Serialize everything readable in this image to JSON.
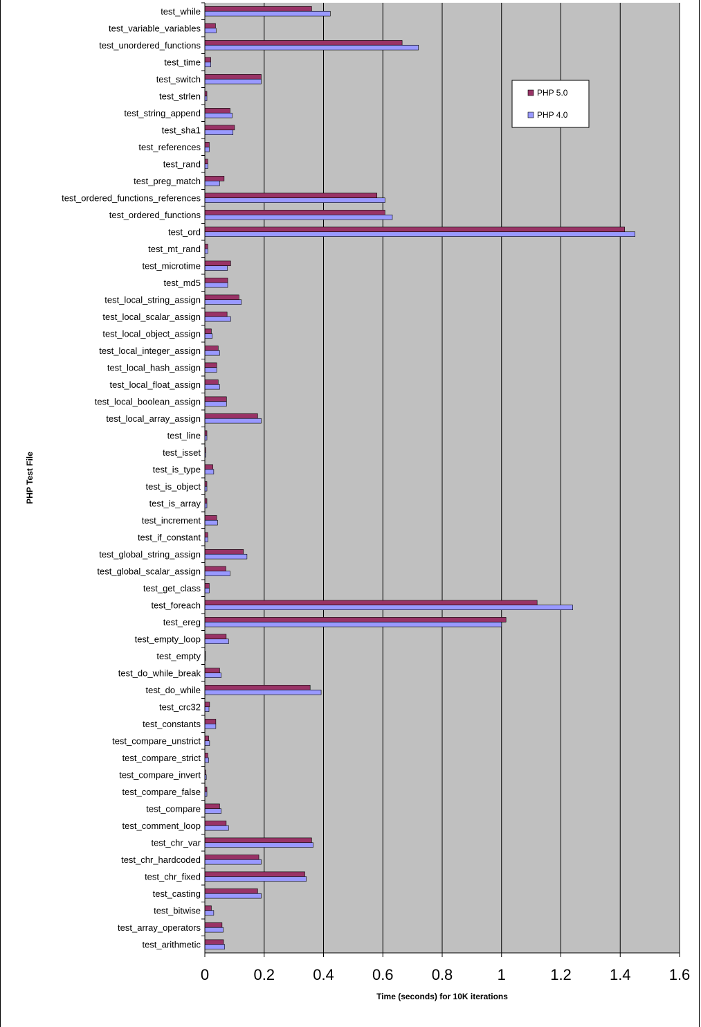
{
  "chart_data": {
    "type": "bar",
    "orientation": "horizontal",
    "xlabel": "Time (seconds) for 10K iterations",
    "ylabel": "PHP Test File",
    "xlim": [
      0,
      1.6
    ],
    "x_ticks": [
      "0",
      "0.2",
      "0.4",
      "0.6",
      "0.8",
      "1",
      "1.2",
      "1.4",
      "1.6"
    ],
    "grid": "vertical gridlines",
    "legend_position": "top-right",
    "colors": {
      "PHP 5.0": "#993366",
      "PHP 4.0": "#9999ff",
      "plot_background": "#c0c0c0"
    },
    "categories": [
      "test_while",
      "test_variable_variables",
      "test_unordered_functions",
      "test_time",
      "test_switch",
      "test_strlen",
      "test_string_append",
      "test_sha1",
      "test_references",
      "test_rand",
      "test_preg_match",
      "test_ordered_functions_references",
      "test_ordered_functions",
      "test_ord",
      "test_mt_rand",
      "test_microtime",
      "test_md5",
      "test_local_string_assign",
      "test_local_scalar_assign",
      "test_local_object_assign",
      "test_local_integer_assign",
      "test_local_hash_assign",
      "test_local_float_assign",
      "test_local_boolean_assign",
      "test_local_array_assign",
      "test_line",
      "test_isset",
      "test_is_type",
      "test_is_object",
      "test_is_array",
      "test_increment",
      "test_if_constant",
      "test_global_string_assign",
      "test_global_scalar_assign",
      "test_get_class",
      "test_foreach",
      "test_ereg",
      "test_empty_loop",
      "test_empty",
      "test_do_while_break",
      "test_do_while",
      "test_crc32",
      "test_constants",
      "test_compare_unstrict",
      "test_compare_strict",
      "test_compare_invert",
      "test_compare_false",
      "test_compare",
      "test_comment_loop",
      "test_chr_var",
      "test_chr_hardcoded",
      "test_chr_fixed",
      "test_casting",
      "test_bitwise",
      "test_array_operators",
      "test_arithmetic"
    ],
    "series": [
      {
        "name": "PHP 5.0",
        "values": [
          0.36,
          0.036,
          0.665,
          0.02,
          0.19,
          0.007,
          0.085,
          0.1,
          0.015,
          0.01,
          0.065,
          0.58,
          0.607,
          1.415,
          0.01,
          0.087,
          0.077,
          0.115,
          0.075,
          0.022,
          0.045,
          0.04,
          0.045,
          0.073,
          0.178,
          0.007,
          0.003,
          0.027,
          0.007,
          0.007,
          0.04,
          0.01,
          0.13,
          0.071,
          0.015,
          1.12,
          1.015,
          0.072,
          0.002,
          0.05,
          0.355,
          0.016,
          0.037,
          0.013,
          0.01,
          0.003,
          0.007,
          0.05,
          0.072,
          0.36,
          0.182,
          0.337,
          0.178,
          0.022,
          0.058,
          0.063
        ]
      },
      {
        "name": "PHP 4.0",
        "values": [
          0.423,
          0.038,
          0.72,
          0.02,
          0.19,
          0.007,
          0.092,
          0.095,
          0.015,
          0.01,
          0.05,
          0.607,
          0.632,
          1.45,
          0.01,
          0.076,
          0.077,
          0.123,
          0.087,
          0.025,
          0.05,
          0.04,
          0.05,
          0.073,
          0.19,
          0.007,
          0.003,
          0.03,
          0.007,
          0.007,
          0.043,
          0.01,
          0.142,
          0.085,
          0.015,
          1.24,
          1.0,
          0.08,
          0.002,
          0.055,
          0.392,
          0.014,
          0.037,
          0.016,
          0.013,
          0.005,
          0.007,
          0.055,
          0.08,
          0.365,
          0.19,
          0.342,
          0.19,
          0.03,
          0.062,
          0.067
        ]
      }
    ]
  }
}
